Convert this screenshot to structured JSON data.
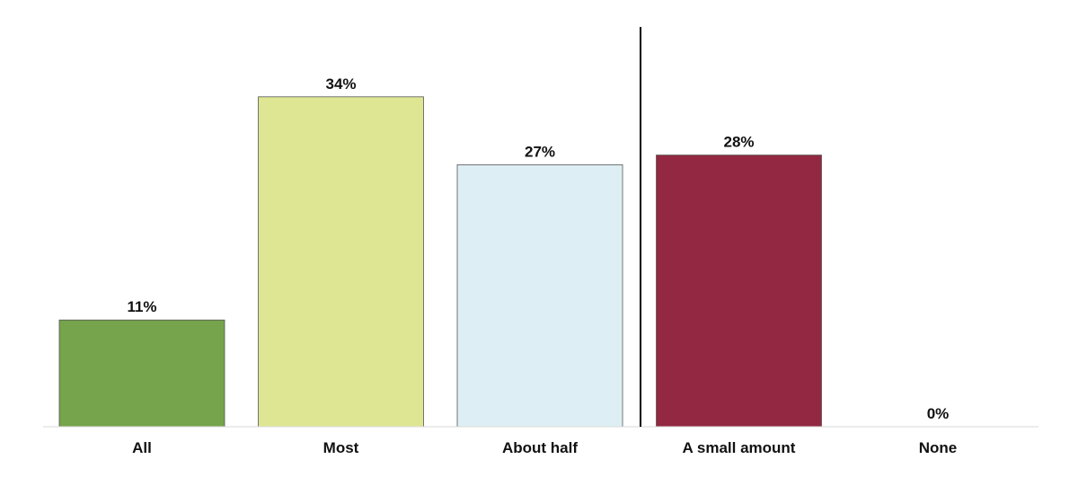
{
  "chart_data": {
    "type": "bar",
    "title": "",
    "xlabel": "",
    "ylabel": "",
    "categories": [
      "All",
      "Most",
      "About half",
      "A small amount",
      "None"
    ],
    "values": [
      11,
      34,
      27,
      28,
      0
    ],
    "value_labels": [
      "11%",
      "34%",
      "27%",
      "28%",
      "0%"
    ],
    "unit": "%",
    "ylim": [
      0,
      40
    ],
    "grid": false,
    "legend": "none",
    "bar_colors": [
      "#76a44c",
      "#dee693",
      "#ddeff4",
      "#932842",
      "#ffffff"
    ],
    "divider_after_category": "About half"
  }
}
